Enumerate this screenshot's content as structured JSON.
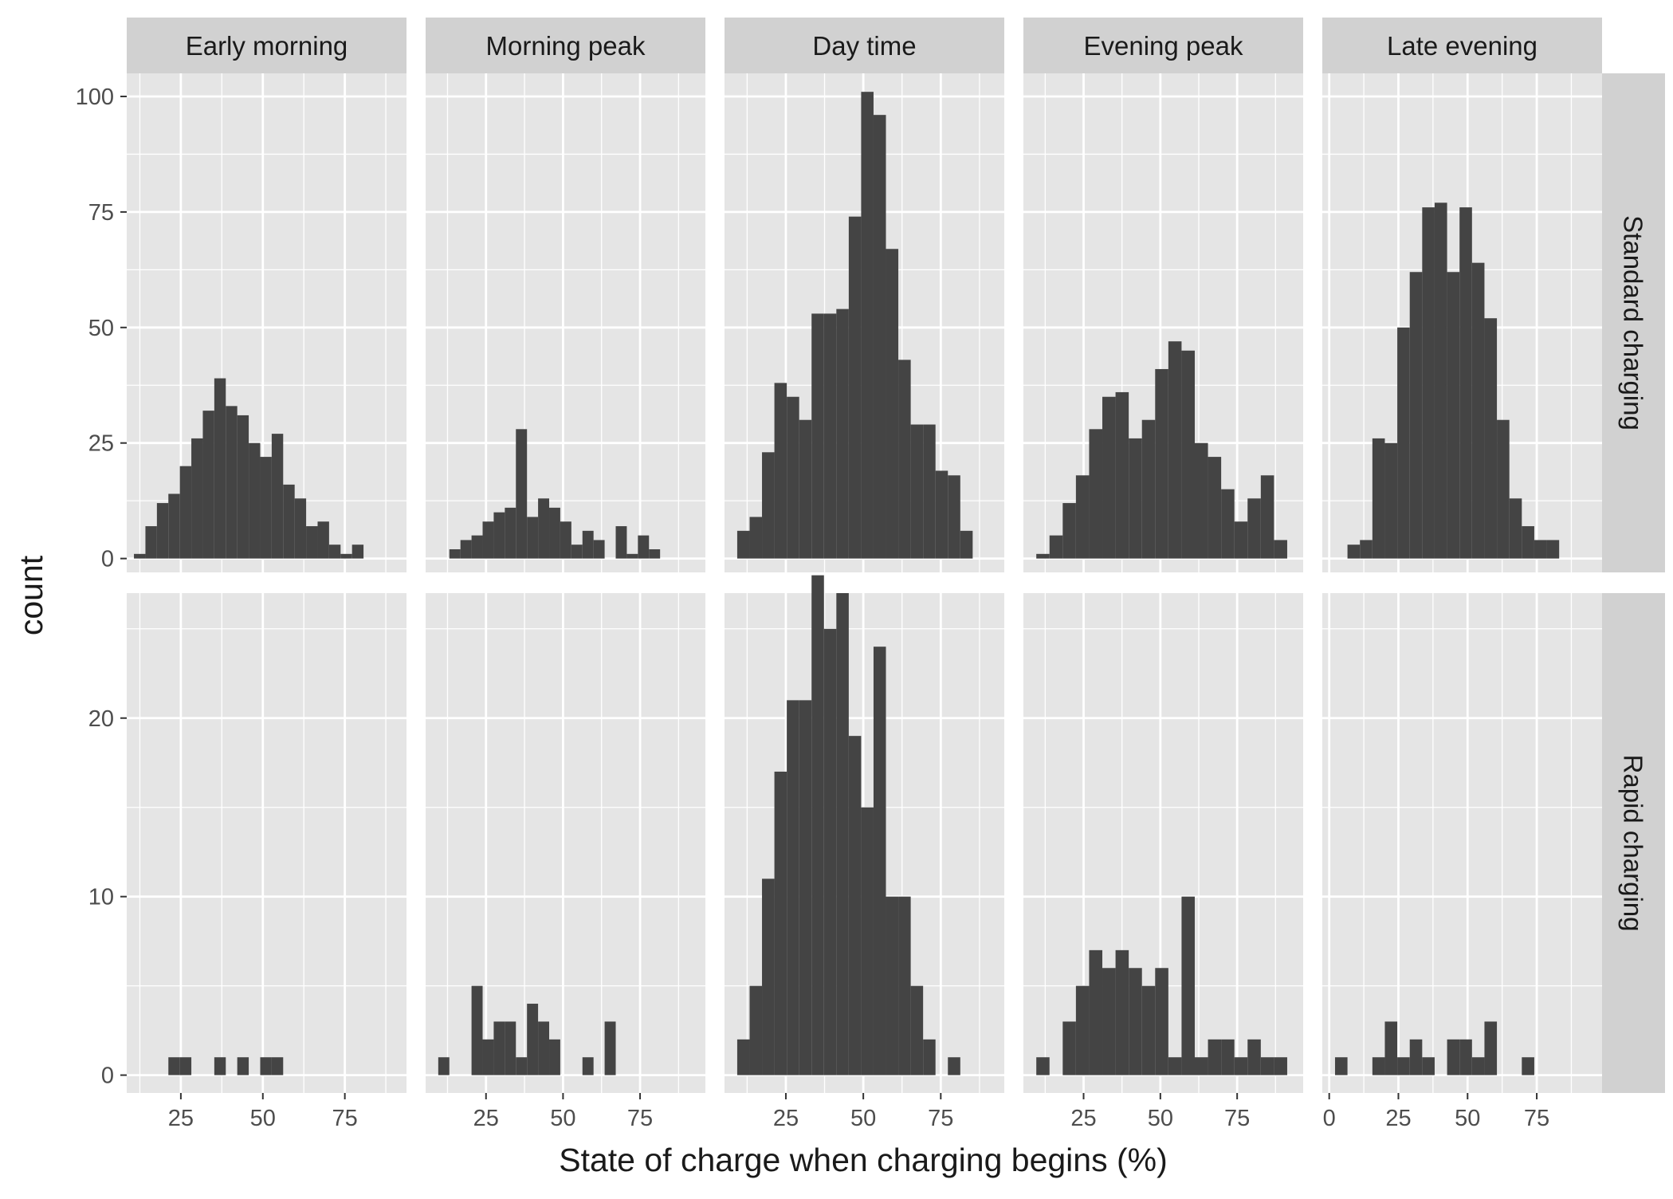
{
  "chart_data": {
    "type": "bar",
    "subtype": "faceted-histogram",
    "xlabel": "State of charge when charging begins (%)",
    "ylabel": "count",
    "grid": true,
    "colors": {
      "bar": "#444444",
      "panel_bg": "#E5E5E5",
      "strip_bg": "#D1D1D1",
      "grid_line": "#FFFFFF",
      "axis_text": "#4D4D4D",
      "title_text": "#1A1A1A"
    },
    "facet_columns": [
      "Early morning",
      "Morning peak",
      "Day time",
      "Evening peak",
      "Late evening"
    ],
    "facet_rows": [
      {
        "label": "Standard charging",
        "ylim": [
          -3,
          105
        ],
        "yticks": [
          0,
          25,
          50,
          75,
          100
        ]
      },
      {
        "label": "Rapid charging",
        "ylim": [
          -1,
          27
        ],
        "yticks": [
          0,
          10,
          20
        ]
      }
    ],
    "panels": [
      {
        "row": "Standard charging",
        "col": "Early morning",
        "xlim": [
          8.5,
          93.8
        ],
        "xticks": [
          25,
          50,
          75
        ],
        "bins": [
          [
            10.7,
            14.2,
            1
          ],
          [
            14.2,
            17.7,
            7
          ],
          [
            17.7,
            21.2,
            12
          ],
          [
            21.2,
            24.7,
            14
          ],
          [
            24.7,
            28.2,
            20
          ],
          [
            28.2,
            31.7,
            26
          ],
          [
            31.7,
            35.2,
            32
          ],
          [
            35.2,
            38.7,
            39
          ],
          [
            38.7,
            42.2,
            33
          ],
          [
            42.2,
            45.7,
            31
          ],
          [
            45.7,
            49.2,
            25
          ],
          [
            49.2,
            52.7,
            22
          ],
          [
            52.7,
            56.2,
            27
          ],
          [
            56.2,
            59.7,
            16
          ],
          [
            59.7,
            63.2,
            13
          ],
          [
            63.2,
            66.7,
            7
          ],
          [
            66.7,
            70.2,
            8
          ],
          [
            70.2,
            73.7,
            3
          ],
          [
            73.7,
            77.2,
            1
          ],
          [
            77.2,
            80.7,
            3
          ]
        ]
      },
      {
        "row": "Standard charging",
        "col": "Morning peak",
        "xlim": [
          5.4,
          96.2
        ],
        "xticks": [
          25,
          50,
          75
        ],
        "bins": [
          [
            13.1,
            16.7,
            2
          ],
          [
            16.7,
            20.3,
            4
          ],
          [
            20.3,
            23.9,
            5
          ],
          [
            23.9,
            27.5,
            8
          ],
          [
            27.5,
            31.1,
            10
          ],
          [
            31.1,
            34.7,
            11
          ],
          [
            34.7,
            38.3,
            28
          ],
          [
            38.3,
            41.9,
            9
          ],
          [
            41.9,
            45.5,
            13
          ],
          [
            45.5,
            49.1,
            11
          ],
          [
            49.1,
            52.7,
            8
          ],
          [
            52.7,
            56.3,
            3
          ],
          [
            56.3,
            59.9,
            6
          ],
          [
            59.9,
            63.5,
            4
          ],
          [
            67.1,
            70.7,
            7
          ],
          [
            70.7,
            74.3,
            1
          ],
          [
            74.3,
            77.9,
            5
          ],
          [
            77.9,
            81.5,
            2
          ]
        ]
      },
      {
        "row": "Standard charging",
        "col": "Day time",
        "xlim": [
          5.2,
          95.5
        ],
        "xticks": [
          25,
          50,
          75
        ],
        "bins": [
          [
            9.3,
            13.3,
            6
          ],
          [
            13.3,
            17.3,
            9
          ],
          [
            17.3,
            21.3,
            23
          ],
          [
            21.3,
            25.3,
            38
          ],
          [
            25.3,
            29.3,
            35
          ],
          [
            29.3,
            33.3,
            30
          ],
          [
            33.3,
            37.3,
            53
          ],
          [
            37.3,
            41.3,
            53
          ],
          [
            41.3,
            45.3,
            54
          ],
          [
            45.3,
            49.3,
            74
          ],
          [
            49.3,
            53.3,
            101
          ],
          [
            53.3,
            57.3,
            96
          ],
          [
            57.3,
            61.3,
            67
          ],
          [
            61.3,
            65.3,
            43
          ],
          [
            65.3,
            69.3,
            29
          ],
          [
            69.3,
            73.3,
            29
          ],
          [
            73.3,
            77.3,
            19
          ],
          [
            77.3,
            81.3,
            18
          ],
          [
            81.3,
            85.3,
            6
          ]
        ]
      },
      {
        "row": "Standard charging",
        "col": "Evening peak",
        "xlim": [
          5.4,
          96.5
        ],
        "xticks": [
          25,
          50,
          75
        ],
        "bins": [
          [
            9.6,
            13.9,
            1
          ],
          [
            13.9,
            18.2,
            5
          ],
          [
            18.2,
            22.5,
            12
          ],
          [
            22.5,
            26.8,
            18
          ],
          [
            26.8,
            31.1,
            28
          ],
          [
            31.1,
            35.4,
            35
          ],
          [
            35.4,
            39.7,
            36
          ],
          [
            39.7,
            44.0,
            26
          ],
          [
            44.0,
            48.3,
            30
          ],
          [
            48.3,
            52.6,
            41
          ],
          [
            52.6,
            56.9,
            47
          ],
          [
            56.9,
            61.2,
            45
          ],
          [
            61.2,
            65.5,
            25
          ],
          [
            65.5,
            69.8,
            22
          ],
          [
            69.8,
            74.1,
            15
          ],
          [
            74.1,
            78.4,
            8
          ],
          [
            78.4,
            82.7,
            13
          ],
          [
            82.7,
            87.0,
            18
          ],
          [
            87.0,
            91.3,
            4
          ]
        ]
      },
      {
        "row": "Standard charging",
        "col": "Late evening",
        "xlim": [
          -2.5,
          98.6
        ],
        "xticks": [
          0,
          25,
          50,
          75
        ],
        "bins": [
          [
            6.6,
            11.1,
            3
          ],
          [
            11.1,
            15.6,
            4
          ],
          [
            15.6,
            20.1,
            26
          ],
          [
            20.1,
            24.6,
            25
          ],
          [
            24.6,
            29.1,
            50
          ],
          [
            29.1,
            33.6,
            62
          ],
          [
            33.6,
            38.1,
            76
          ],
          [
            38.1,
            42.6,
            77
          ],
          [
            42.6,
            47.1,
            62
          ],
          [
            47.1,
            51.6,
            76
          ],
          [
            51.6,
            56.1,
            64
          ],
          [
            56.1,
            60.6,
            52
          ],
          [
            60.6,
            65.1,
            30
          ],
          [
            65.1,
            69.6,
            13
          ],
          [
            69.6,
            74.1,
            7
          ],
          [
            74.1,
            78.6,
            4
          ],
          [
            78.6,
            83.1,
            4
          ]
        ]
      },
      {
        "row": "Rapid charging",
        "col": "Early morning",
        "xlim": [
          8.5,
          93.8
        ],
        "xticks": [
          25,
          50,
          75
        ],
        "bins": [
          [
            21.2,
            24.7,
            1
          ],
          [
            24.7,
            28.2,
            1
          ],
          [
            35.2,
            38.7,
            1
          ],
          [
            42.2,
            45.7,
            1
          ],
          [
            49.2,
            52.7,
            1
          ],
          [
            52.7,
            56.2,
            1
          ]
        ]
      },
      {
        "row": "Rapid charging",
        "col": "Morning peak",
        "xlim": [
          5.4,
          96.2
        ],
        "xticks": [
          25,
          50,
          75
        ],
        "bins": [
          [
            9.5,
            13.1,
            1
          ],
          [
            20.3,
            23.9,
            5
          ],
          [
            23.9,
            27.5,
            2
          ],
          [
            27.5,
            31.1,
            3
          ],
          [
            31.1,
            34.7,
            3
          ],
          [
            34.7,
            38.3,
            1
          ],
          [
            38.3,
            41.9,
            4
          ],
          [
            41.9,
            45.5,
            3
          ],
          [
            45.5,
            49.1,
            2
          ],
          [
            56.3,
            59.9,
            1
          ],
          [
            63.5,
            67.1,
            3
          ]
        ]
      },
      {
        "row": "Rapid charging",
        "col": "Day time",
        "xlim": [
          5.2,
          95.5
        ],
        "xticks": [
          25,
          50,
          75
        ],
        "bins": [
          [
            9.3,
            13.3,
            2
          ],
          [
            13.3,
            17.3,
            5
          ],
          [
            17.3,
            21.3,
            11
          ],
          [
            21.3,
            25.3,
            17
          ],
          [
            25.3,
            29.3,
            21
          ],
          [
            29.3,
            33.3,
            21
          ],
          [
            33.3,
            37.3,
            28
          ],
          [
            37.3,
            41.3,
            25
          ],
          [
            41.3,
            45.3,
            27
          ],
          [
            45.3,
            49.3,
            19
          ],
          [
            49.3,
            53.3,
            15
          ],
          [
            53.3,
            57.3,
            24
          ],
          [
            57.3,
            61.3,
            10
          ],
          [
            61.3,
            65.3,
            10
          ],
          [
            65.3,
            69.3,
            5
          ],
          [
            69.3,
            73.3,
            2
          ],
          [
            77.3,
            81.3,
            1
          ]
        ]
      },
      {
        "row": "Rapid charging",
        "col": "Evening peak",
        "xlim": [
          5.4,
          96.5
        ],
        "xticks": [
          25,
          50,
          75
        ],
        "bins": [
          [
            9.6,
            13.9,
            1
          ],
          [
            18.2,
            22.5,
            3
          ],
          [
            22.5,
            26.8,
            5
          ],
          [
            26.8,
            31.1,
            7
          ],
          [
            31.1,
            35.4,
            6
          ],
          [
            35.4,
            39.7,
            7
          ],
          [
            39.7,
            44.0,
            6
          ],
          [
            44.0,
            48.3,
            5
          ],
          [
            48.3,
            52.6,
            6
          ],
          [
            52.6,
            56.9,
            1
          ],
          [
            56.9,
            61.2,
            10
          ],
          [
            61.2,
            65.5,
            1
          ],
          [
            65.5,
            69.8,
            2
          ],
          [
            69.8,
            74.1,
            2
          ],
          [
            74.1,
            78.4,
            1
          ],
          [
            78.4,
            82.7,
            2
          ],
          [
            82.7,
            87.0,
            1
          ],
          [
            87.0,
            91.3,
            1
          ]
        ]
      },
      {
        "row": "Rapid charging",
        "col": "Late evening",
        "xlim": [
          -2.5,
          98.6
        ],
        "xticks": [
          0,
          25,
          50,
          75
        ],
        "bins": [
          [
            2.1,
            6.6,
            1
          ],
          [
            15.6,
            20.1,
            1
          ],
          [
            20.1,
            24.6,
            3
          ],
          [
            24.6,
            29.1,
            1
          ],
          [
            29.1,
            33.6,
            2
          ],
          [
            33.6,
            38.1,
            1
          ],
          [
            42.6,
            47.1,
            2
          ],
          [
            47.1,
            51.6,
            2
          ],
          [
            51.6,
            56.1,
            1
          ],
          [
            56.1,
            60.6,
            3
          ],
          [
            69.6,
            74.1,
            1
          ]
        ]
      }
    ]
  }
}
